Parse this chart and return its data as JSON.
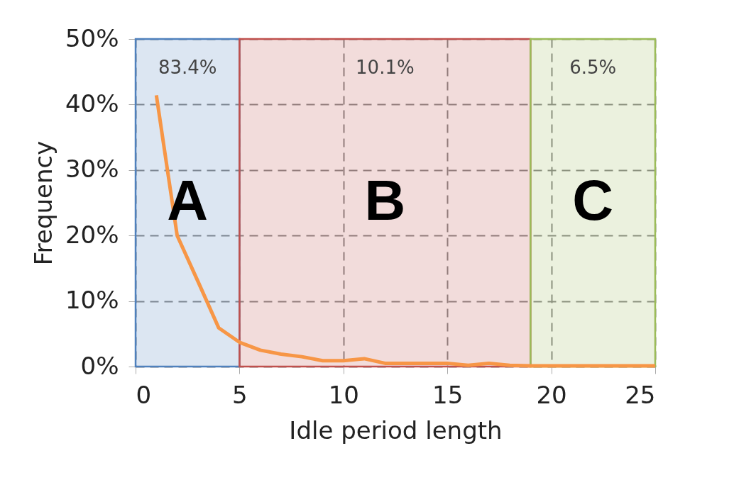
{
  "chart_data": {
    "type": "line",
    "xlabel": "Idle period length",
    "ylabel": "Frequency",
    "x": [
      1,
      2,
      3,
      4,
      5,
      6,
      7,
      8,
      9,
      10,
      11,
      12,
      13,
      14,
      15,
      16,
      17,
      18,
      19,
      20,
      21,
      22,
      23,
      24,
      25
    ],
    "series": [
      {
        "color": "#f79646",
        "values": [
          41.4,
          20,
          13,
          5.9,
          3.7,
          2.5,
          1.9,
          1.5,
          0.9,
          0.9,
          1.2,
          0.5,
          0.5,
          0.5,
          0.5,
          0.2,
          0.5,
          0.2,
          0.1,
          0.1,
          0.1,
          0.1,
          0.1,
          0.1,
          0.1
        ]
      }
    ],
    "xlim": [
      0,
      25
    ],
    "xticks": [
      0,
      5,
      10,
      15,
      20,
      25
    ],
    "ylim": [
      0,
      50
    ],
    "yticks": [
      {
        "value": 0,
        "label": "0%"
      },
      {
        "value": 10,
        "label": "10%"
      },
      {
        "value": 20,
        "label": "20%"
      },
      {
        "value": 30,
        "label": "30%"
      },
      {
        "value": 40,
        "label": "40%"
      },
      {
        "value": 50,
        "label": "50%"
      }
    ],
    "grid": true,
    "line_style": "solid",
    "marker": "none",
    "bands": [
      {
        "axis": "x",
        "from": 0,
        "to": 5,
        "label": "83.4%",
        "color": "#4f81bd"
      },
      {
        "axis": "x",
        "from": 5,
        "to": 19,
        "label": "10.1%",
        "color": "#c0504d"
      },
      {
        "axis": "x",
        "from": 19,
        "to": 25,
        "label": "6.5%",
        "color": "#9bbb59"
      }
    ],
    "annotations": [
      "A",
      "B",
      "C"
    ]
  }
}
